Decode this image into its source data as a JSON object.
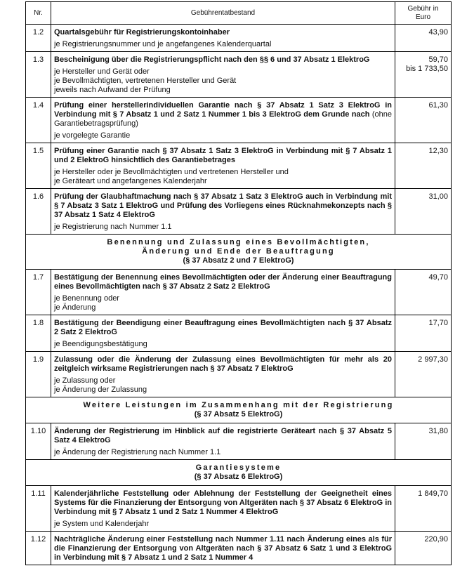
{
  "header": {
    "nr": "Nr.",
    "desc": "Gebührentatbestand",
    "fee": "Gebühr in Euro"
  },
  "rows": [
    {
      "type": "item",
      "nr": "1.2",
      "title": "Quartalsgebühr für Registrierungskontoinhaber",
      "sub": [
        "je Registrierungsnummer und je angefangenes Kalenderquartal"
      ],
      "fee": [
        "43,90"
      ]
    },
    {
      "type": "item",
      "nr": "1.3",
      "title": "Bescheinigung über die Registrierungspflicht nach den §§ 6 und 37 Absatz 1 ElektroG",
      "sub": [
        "je Hersteller und Gerät oder",
        "je Bevollmächtigten, vertretenen Hersteller und Gerät",
        "jeweils nach Aufwand der Prüfung"
      ],
      "fee": [
        "59,70",
        "bis 1 733,50"
      ]
    },
    {
      "type": "item",
      "nr": "1.4",
      "title": "Prüfung einer herstellerindividuellen Garantie nach § 37 Absatz 1 Satz 3 ElektroG in Verbindung mit § 7 Absatz 1 und 2 Satz 1 Nummer 1 bis 3 ElektroG dem Grunde nach",
      "title_note": " (ohne Garantiebetragsprüfung)",
      "sub": [
        "je vorgelegte Garantie"
      ],
      "fee": [
        "61,30"
      ]
    },
    {
      "type": "item",
      "nr": "1.5",
      "title": "Prüfung einer Garantie nach § 37 Absatz 1 Satz 3 ElektroG in Verbindung mit § 7 Absatz 1 und 2 ElektroG hinsichtlich des Garantiebetrages",
      "sub": [
        "je Hersteller oder je Bevollmächtigten und vertretenen Hersteller und",
        "je Geräteart und angefangenes Kalenderjahr"
      ],
      "fee": [
        "12,30"
      ]
    },
    {
      "type": "item",
      "nr": "1.6",
      "title": "Prüfung der Glaubhaftmachung nach § 37 Absatz 1 Satz 3 ElektroG auch in Verbindung mit § 7 Absatz 3 Satz 1 ElektroG und Prüfung des Vorliegens eines Rücknahmekonzepts nach § 37 Absatz 1 Satz 4 ElektroG",
      "sub": [
        "je Registrierung nach Nummer 1.1"
      ],
      "fee": [
        "31,00"
      ]
    },
    {
      "type": "section",
      "lines": [
        "Benennung und Zulassung eines Bevollmächtigten,",
        "Änderung und Ende der Beauftragung"
      ],
      "ref": "(§ 37 Absatz 2 und 7 ElektroG)"
    },
    {
      "type": "item",
      "nr": "1.7",
      "title": "Bestätigung der Benennung eines Bevollmächtigten oder der Änderung einer Beauftragung eines Bevollmächtigten nach § 37 Absatz 2 Satz 2 ElektroG",
      "sub": [
        "je Benennung oder",
        "je Änderung"
      ],
      "fee": [
        "49,70"
      ]
    },
    {
      "type": "item",
      "nr": "1.8",
      "title": "Bestätigung der Beendigung einer Beauftragung eines Bevollmächtigten nach § 37 Absatz 2 Satz 2 ElektroG",
      "sub": [
        "je Beendigungsbestätigung"
      ],
      "fee": [
        "17,70"
      ]
    },
    {
      "type": "item",
      "nr": "1.9",
      "title": "Zulassung oder die Änderung der Zulassung eines Bevollmächtigten für mehr als 20 zeitgleich wirksame Registrierungen nach § 37 Absatz 7 ElektroG",
      "sub": [
        "je Zulassung oder",
        "je Änderung der Zulassung"
      ],
      "fee": [
        "2 997,30"
      ]
    },
    {
      "type": "section",
      "lines": [
        "Weitere Leistungen im Zusammenhang mit der Registrierung"
      ],
      "ref": "(§ 37 Absatz 5 ElektroG)"
    },
    {
      "type": "item",
      "nr": "1.10",
      "title": "Änderung der Registrierung im Hinblick auf die registrierte Geräteart nach § 37 Absatz 5 Satz 4 ElektroG",
      "sub": [
        "je Änderung der Registrierung nach Nummer 1.1"
      ],
      "fee": [
        "31,80"
      ]
    },
    {
      "type": "section",
      "lines": [
        "Garantiesysteme"
      ],
      "ref": "(§ 37 Absatz 6 ElektroG)"
    },
    {
      "type": "item",
      "nr": "1.11",
      "title": "Kalenderjährliche Feststellung oder Ablehnung der Feststellung der Geeignetheit eines Systems für die Finanzierung der Entsorgung von Altgeräten nach § 37 Absatz 6 ElektroG in Verbindung mit § 7 Absatz 1 und 2 Satz 1 Nummer 4 ElektroG",
      "sub": [
        "je System und Kalenderjahr"
      ],
      "fee": [
        "1 849,70"
      ]
    },
    {
      "type": "item",
      "nr": "1.12",
      "title": "Nachträgliche Änderung einer Feststellung nach Nummer 1.11 nach Änderung eines als für die Finanzierung der Entsorgung von Altgeräten nach § 37 Absatz 6 Satz 1 und 3 ElektroG in Verbindung mit § 7 Absatz 1 und 2 Satz 1 Nummer 4",
      "sub": [],
      "fee": [
        "220,90"
      ]
    }
  ]
}
